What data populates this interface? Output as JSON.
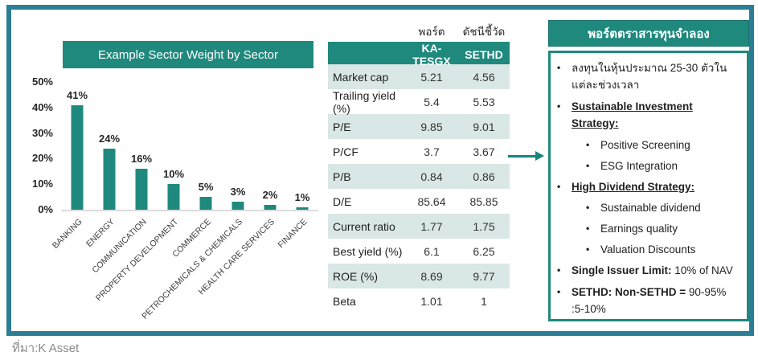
{
  "colors": {
    "accent_teal": "#20897e",
    "frame_border_teal": "#2d7e95",
    "shaded_row": "#d9e7e6",
    "arrow_teal": "#17857c",
    "source_text_gray": "#8a8a8a"
  },
  "chart_data": {
    "type": "bar",
    "title": "Example Sector Weight by Sector",
    "categories": [
      "BANKING",
      "ENERGY",
      "COMMUNICATION",
      "PROPERTY DEVELOPMENT",
      "COMMERCE",
      "PETROCHEMICALS & CHEMICALS",
      "HEALTH CARE SERVICES",
      "FINANCE"
    ],
    "values": [
      41,
      24,
      16,
      10,
      5,
      3,
      2,
      1
    ],
    "value_unit": "%",
    "y_ticks": [
      "50%",
      "40%",
      "30%",
      "20%",
      "10%",
      "0%"
    ],
    "ylim": [
      0,
      50
    ],
    "grid": false,
    "legend": false,
    "bar_color": "#20897e"
  },
  "table": {
    "group_headers": [
      "พอร์ต",
      "ดัชนีชี้วัด"
    ],
    "columns": [
      "KA-TESGX",
      "SETHD"
    ],
    "rows": [
      {
        "label": "Market cap",
        "values": [
          "5.21",
          "4.56"
        ],
        "shaded": true
      },
      {
        "label": "Trailing yield (%)",
        "values": [
          "5.4",
          "5.53"
        ],
        "shaded": false
      },
      {
        "label": "P/E",
        "values": [
          "9.85",
          "9.01"
        ],
        "shaded": true
      },
      {
        "label": "P/CF",
        "values": [
          "3.7",
          "3.67"
        ],
        "shaded": false
      },
      {
        "label": "P/B",
        "values": [
          "0.84",
          "0.86"
        ],
        "shaded": true
      },
      {
        "label": "D/E",
        "values": [
          "85.64",
          "85.85"
        ],
        "shaded": false
      },
      {
        "label": "Current ratio",
        "values": [
          "1.77",
          "1.75"
        ],
        "shaded": true
      },
      {
        "label": "Best yield (%)",
        "values": [
          "6.1",
          "6.25"
        ],
        "shaded": false
      },
      {
        "label": "ROE (%)",
        "values": [
          "8.69",
          "9.77"
        ],
        "shaded": true
      },
      {
        "label": "Beta",
        "values": [
          "1.01",
          "1"
        ],
        "shaded": false
      }
    ]
  },
  "panel": {
    "title": "พอร์ตตราสารทุนจำลอง",
    "bullets": [
      {
        "indent": 1,
        "strong": "",
        "underline": false,
        "text": "ลงทุนในหุ้นประมาณ 25-30 ตัวในแต่ละช่วงเวลา"
      },
      {
        "indent": 1,
        "strong": "Sustainable Investment Strategy:",
        "underline": true,
        "text": ""
      },
      {
        "indent": 2,
        "strong": "",
        "underline": false,
        "text": "Positive Screening"
      },
      {
        "indent": 2,
        "strong": "",
        "underline": false,
        "text": "ESG Integration"
      },
      {
        "indent": 1,
        "strong": "High Dividend Strategy:",
        "underline": true,
        "text": ""
      },
      {
        "indent": 2,
        "strong": "",
        "underline": false,
        "text": "Sustainable dividend"
      },
      {
        "indent": 2,
        "strong": "",
        "underline": false,
        "text": "Earnings quality"
      },
      {
        "indent": 2,
        "strong": "",
        "underline": false,
        "text": "Valuation Discounts"
      },
      {
        "indent": 1,
        "strong": "Single Issuer Limit:",
        "underline": false,
        "text": " 10% of NAV"
      },
      {
        "indent": 1,
        "strong": "SETHD: Non-SETHD =",
        "underline": false,
        "text": " 90-95% :5-10%"
      }
    ]
  },
  "footer": {
    "source": "ที่มา:K Asset"
  }
}
